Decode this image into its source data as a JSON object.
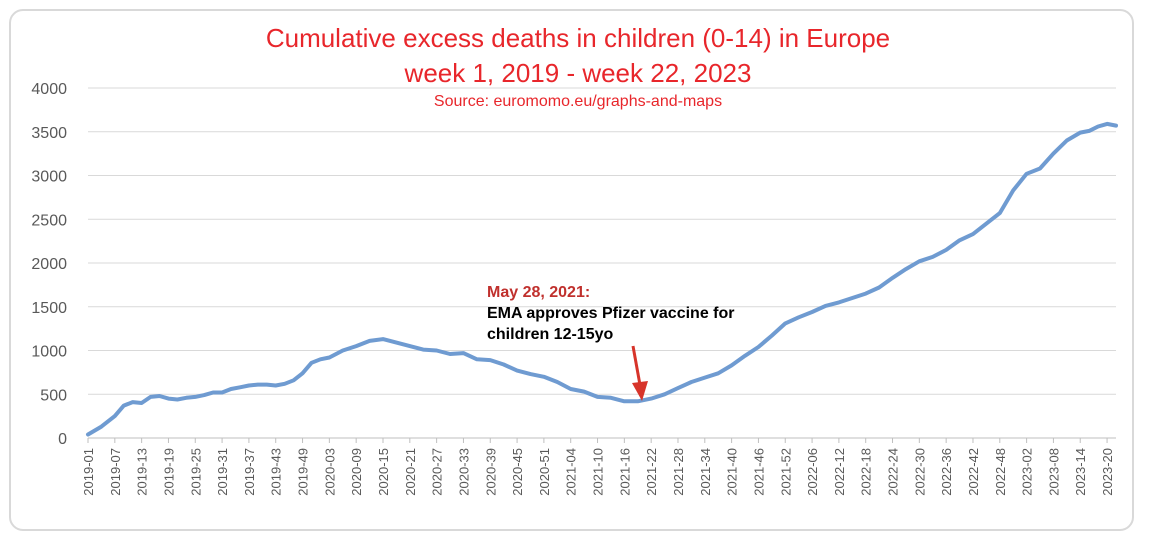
{
  "chart_data": {
    "type": "line",
    "title": "Cumulative excess deaths in children (0-14) in Europe",
    "subtitle": "week 1, 2019 - week 22, 2023",
    "source": "Source: euromomo.eu/graphs-and-maps",
    "xlabel": "",
    "ylabel": "",
    "ylim": [
      0,
      4000
    ],
    "yticks": [
      0,
      500,
      1000,
      1500,
      2000,
      2500,
      3000,
      3500,
      4000
    ],
    "grid": true,
    "legend": "none",
    "line_color": "#6f9bd1",
    "title_color": "#e8262b",
    "x_tick_labels": [
      "2019-01",
      "2019-07",
      "2019-13",
      "2019-19",
      "2019-25",
      "2019-31",
      "2019-37",
      "2019-43",
      "2019-49",
      "2020-03",
      "2020-09",
      "2020-15",
      "2020-21",
      "2020-27",
      "2020-33",
      "2020-39",
      "2020-45",
      "2020-51",
      "2021-04",
      "2021-10",
      "2021-16",
      "2021-22",
      "2021-28",
      "2021-34",
      "2021-40",
      "2021-46",
      "2021-52",
      "2022-06",
      "2022-12",
      "2022-18",
      "2022-24",
      "2022-30",
      "2022-36",
      "2022-42",
      "2022-48",
      "2023-02",
      "2023-08",
      "2023-14",
      "2023-20"
    ],
    "series": [
      {
        "name": "",
        "points": [
          [
            "2019-01",
            40
          ],
          [
            "2019-04",
            130
          ],
          [
            "2019-07",
            250
          ],
          [
            "2019-09",
            370
          ],
          [
            "2019-11",
            410
          ],
          [
            "2019-13",
            400
          ],
          [
            "2019-15",
            470
          ],
          [
            "2019-17",
            480
          ],
          [
            "2019-19",
            450
          ],
          [
            "2019-21",
            440
          ],
          [
            "2019-23",
            460
          ],
          [
            "2019-25",
            470
          ],
          [
            "2019-27",
            490
          ],
          [
            "2019-29",
            520
          ],
          [
            "2019-31",
            520
          ],
          [
            "2019-33",
            560
          ],
          [
            "2019-35",
            580
          ],
          [
            "2019-37",
            600
          ],
          [
            "2019-39",
            610
          ],
          [
            "2019-41",
            610
          ],
          [
            "2019-43",
            600
          ],
          [
            "2019-45",
            620
          ],
          [
            "2019-47",
            660
          ],
          [
            "2019-49",
            740
          ],
          [
            "2019-51",
            860
          ],
          [
            "2020-01",
            900
          ],
          [
            "2020-03",
            920
          ],
          [
            "2020-06",
            1000
          ],
          [
            "2020-09",
            1050
          ],
          [
            "2020-12",
            1110
          ],
          [
            "2020-15",
            1130
          ],
          [
            "2020-18",
            1090
          ],
          [
            "2020-21",
            1050
          ],
          [
            "2020-24",
            1010
          ],
          [
            "2020-27",
            1000
          ],
          [
            "2020-30",
            960
          ],
          [
            "2020-33",
            970
          ],
          [
            "2020-36",
            900
          ],
          [
            "2020-39",
            890
          ],
          [
            "2020-42",
            840
          ],
          [
            "2020-45",
            770
          ],
          [
            "2020-48",
            730
          ],
          [
            "2020-51",
            700
          ],
          [
            "2021-01",
            640
          ],
          [
            "2021-04",
            560
          ],
          [
            "2021-07",
            530
          ],
          [
            "2021-10",
            470
          ],
          [
            "2021-13",
            460
          ],
          [
            "2021-16",
            420
          ],
          [
            "2021-19",
            420
          ],
          [
            "2021-22",
            450
          ],
          [
            "2021-25",
            500
          ],
          [
            "2021-28",
            570
          ],
          [
            "2021-31",
            640
          ],
          [
            "2021-34",
            690
          ],
          [
            "2021-37",
            740
          ],
          [
            "2021-40",
            830
          ],
          [
            "2021-43",
            940
          ],
          [
            "2021-46",
            1040
          ],
          [
            "2021-49",
            1170
          ],
          [
            "2021-52",
            1310
          ],
          [
            "2022-03",
            1380
          ],
          [
            "2022-06",
            1440
          ],
          [
            "2022-09",
            1510
          ],
          [
            "2022-12",
            1550
          ],
          [
            "2022-15",
            1600
          ],
          [
            "2022-18",
            1650
          ],
          [
            "2022-21",
            1720
          ],
          [
            "2022-24",
            1830
          ],
          [
            "2022-27",
            1930
          ],
          [
            "2022-30",
            2020
          ],
          [
            "2022-33",
            2070
          ],
          [
            "2022-36",
            2150
          ],
          [
            "2022-39",
            2260
          ],
          [
            "2022-42",
            2330
          ],
          [
            "2022-45",
            2450
          ],
          [
            "2022-48",
            2570
          ],
          [
            "2022-51",
            2830
          ],
          [
            "2023-02",
            3020
          ],
          [
            "2023-05",
            3080
          ],
          [
            "2023-08",
            3250
          ],
          [
            "2023-11",
            3400
          ],
          [
            "2023-14",
            3490
          ],
          [
            "2023-16",
            3510
          ],
          [
            "2023-18",
            3560
          ],
          [
            "2023-20",
            3590
          ],
          [
            "2023-22",
            3570
          ]
        ]
      }
    ],
    "annotations": [
      {
        "date_line": "May 28, 2021:",
        "text_lines": [
          "EMA approves Pfizer vaccine for",
          "children 12-15yo"
        ],
        "points_to": "2021-21",
        "arrow_color": "#d7342a"
      }
    ]
  }
}
